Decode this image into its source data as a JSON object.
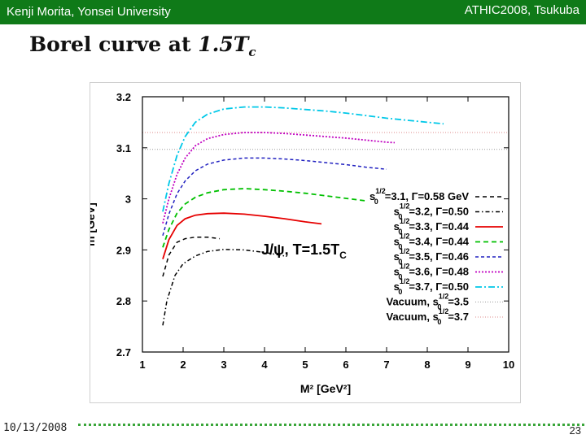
{
  "header": {
    "left": "Kenji Morita, Yonsei University",
    "right": "ATHIC2008, Tsukuba",
    "color": "#0f7a18"
  },
  "slide": {
    "title_text": "Borel curve at",
    "title_math": "1.5T",
    "title_math_sub": "c"
  },
  "footer": {
    "date": "10/13/2008",
    "page": "23"
  },
  "chart_data": {
    "type": "line",
    "title": "",
    "in_plot_label": "J/ψ, T=1.5T",
    "in_plot_label_sub": "C",
    "xlabel": "M² [GeV²]",
    "ylabel": "m [GeV]",
    "xlim": [
      1,
      10
    ],
    "ylim": [
      2.7,
      3.2
    ],
    "x_ticks": [
      "1",
      "2",
      "3",
      "4",
      "5",
      "6",
      "7",
      "8",
      "9",
      "10"
    ],
    "y_ticks": [
      "2.7",
      "2.8",
      "2.9",
      "3",
      "3.1",
      "3.2"
    ],
    "grid": false,
    "legend_position": "right",
    "series": [
      {
        "name": "s0^1/2=3.1, Γ=0.58 GeV",
        "legend_main": "s",
        "legend_sub": "0",
        "legend_sup": "1/2",
        "legend_rest": "=3.1, Γ=0.58 GeV",
        "color": "#000000",
        "dash": "5,4",
        "width": 1.5,
        "x": [
          1.5,
          1.65,
          1.85,
          2.05,
          2.3,
          2.6,
          2.9
        ],
        "y": [
          2.848,
          2.89,
          2.915,
          2.922,
          2.925,
          2.925,
          2.922
        ]
      },
      {
        "name": "s0^1/2=3.2, Γ=0.50",
        "legend_main": "s",
        "legend_sub": "0",
        "legend_sup": "1/2",
        "legend_rest": "=3.2, Γ=0.50",
        "color": "#000000",
        "dash": "5,3,1.5,3",
        "width": 1.5,
        "x": [
          1.5,
          1.6,
          1.8,
          2.0,
          2.3,
          2.6,
          3.0,
          3.5,
          4.0,
          4.5
        ],
        "y": [
          2.752,
          2.8,
          2.85,
          2.873,
          2.888,
          2.897,
          2.901,
          2.9,
          2.895,
          2.888
        ]
      },
      {
        "name": "s0^1/2=3.3, Γ=0.44",
        "legend_main": "s",
        "legend_sub": "0",
        "legend_sup": "1/2",
        "legend_rest": "=3.3, Γ=0.44",
        "color": "#e60000",
        "dash": "",
        "width": 1.8,
        "x": [
          1.5,
          1.65,
          1.85,
          2.05,
          2.3,
          2.6,
          3.0,
          3.5,
          4.0,
          4.5,
          5.0,
          5.4
        ],
        "y": [
          2.882,
          2.92,
          2.948,
          2.961,
          2.968,
          2.971,
          2.972,
          2.97,
          2.966,
          2.961,
          2.955,
          2.951
        ]
      },
      {
        "name": "s0^1/2=3.4, Γ=0.44",
        "legend_main": "s",
        "legend_sub": "0",
        "legend_sup": "1/2",
        "legend_rest": "=3.4, Γ=0.44",
        "color": "#00c000",
        "dash": "6,4",
        "width": 1.8,
        "x": [
          1.5,
          1.65,
          1.85,
          2.05,
          2.3,
          2.6,
          3.0,
          3.5,
          4.0,
          4.5,
          5.0,
          5.5,
          6.0,
          6.5
        ],
        "y": [
          2.905,
          2.94,
          2.972,
          2.99,
          3.003,
          3.012,
          3.018,
          3.02,
          3.018,
          3.015,
          3.011,
          3.006,
          3.001,
          2.996
        ]
      },
      {
        "name": "s0^1/2=3.5, Γ=0.46",
        "legend_main": "s",
        "legend_sub": "0",
        "legend_sup": "1/2",
        "legend_rest": "=3.5, Γ=0.46",
        "color": "#2020c0",
        "dash": "4,3",
        "width": 1.5,
        "x": [
          1.5,
          1.65,
          1.85,
          2.05,
          2.3,
          2.6,
          3.0,
          3.5,
          4.0,
          4.5,
          5.0,
          5.5,
          6.0,
          6.5,
          7.0
        ],
        "y": [
          2.928,
          2.97,
          3.01,
          3.035,
          3.055,
          3.068,
          3.076,
          3.08,
          3.08,
          3.078,
          3.075,
          3.071,
          3.067,
          3.062,
          3.058
        ]
      },
      {
        "name": "s0^1/2=3.6, Γ=0.48",
        "legend_main": "s",
        "legend_sub": "0",
        "legend_sup": "1/2",
        "legend_rest": "=3.6, Γ=0.48",
        "color": "#c000c0",
        "dash": "2,2",
        "width": 1.8,
        "x": [
          1.5,
          1.65,
          1.85,
          2.05,
          2.3,
          2.6,
          3.0,
          3.5,
          4.0,
          4.5,
          5.0,
          5.5,
          6.0,
          6.5,
          7.0,
          7.2
        ],
        "y": [
          2.952,
          3.0,
          3.048,
          3.08,
          3.104,
          3.118,
          3.126,
          3.13,
          3.13,
          3.128,
          3.125,
          3.122,
          3.119,
          3.115,
          3.111,
          3.11
        ]
      },
      {
        "name": "s0^1/2=3.7, Γ=0.50",
        "legend_main": "s",
        "legend_sub": "0",
        "legend_sup": "1/2",
        "legend_rest": "=3.7, Γ=0.50",
        "color": "#00c8e8",
        "dash": "8,3,2,3",
        "width": 1.8,
        "x": [
          1.5,
          1.65,
          1.85,
          2.05,
          2.3,
          2.6,
          3.0,
          3.5,
          4.0,
          4.5,
          5.0,
          5.5,
          6.0,
          6.5,
          7.0,
          7.5,
          8.0,
          8.4
        ],
        "y": [
          2.975,
          3.03,
          3.085,
          3.122,
          3.15,
          3.166,
          3.176,
          3.18,
          3.18,
          3.178,
          3.175,
          3.172,
          3.168,
          3.163,
          3.158,
          3.154,
          3.15,
          3.147
        ]
      },
      {
        "name": "Vacuum, s0^1/2=3.5",
        "legend_main": "Vacuum, s",
        "legend_sub": "0",
        "legend_sup": "1/2",
        "legend_rest": "=3.5",
        "color": "#999999",
        "dash": "1,2",
        "width": 1,
        "x": [
          1,
          10
        ],
        "y": [
          3.097,
          3.097
        ]
      },
      {
        "name": "Vacuum, s0^1/2=3.7",
        "legend_main": "Vacuum, s",
        "legend_sub": "0",
        "legend_sup": "1/2",
        "legend_rest": "=3.7",
        "color": "#dd8888",
        "dash": "1,2",
        "width": 1,
        "x": [
          1,
          10
        ],
        "y": [
          3.13,
          3.13
        ]
      }
    ]
  }
}
